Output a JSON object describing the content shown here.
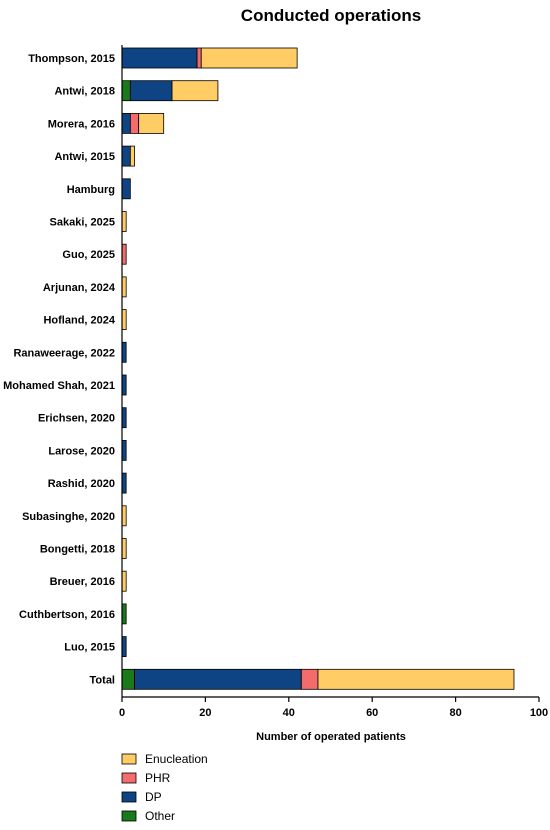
{
  "chart_data": {
    "type": "bar",
    "orientation": "horizontal",
    "stacked": true,
    "title": "Conducted operations",
    "xlabel": "Number of operated patients",
    "ylabel": "",
    "xlim": [
      0,
      100
    ],
    "xticks": [
      0,
      20,
      40,
      60,
      80,
      100
    ],
    "grid": false,
    "legend_position": "bottom-left",
    "categories": [
      "Thompson, 2015",
      "Antwi, 2018",
      "Morera, 2016",
      "Antwi, 2015",
      "Hamburg",
      "Sakaki, 2025",
      "Guo, 2025",
      "Arjunan, 2024",
      "Hofland, 2024",
      "Ranaweerage, 2022",
      "Mohamed Shah, 2021",
      "Erichsen, 2020",
      "Larose, 2020",
      "Rashid, 2020",
      "Subasinghe, 2020",
      "Bongetti, 2018",
      "Breuer, 2016",
      "Cuthbertson, 2016",
      "Luo, 2015",
      "Total"
    ],
    "stack_order": [
      "Other",
      "DP",
      "PHR",
      "Enucleation"
    ],
    "series": [
      {
        "name": "Enucleation",
        "color": "#FFCC66",
        "values": [
          23,
          11,
          6,
          1,
          0,
          1,
          0,
          1,
          1,
          0,
          0,
          0,
          0,
          0,
          1,
          1,
          1,
          0,
          0,
          47
        ]
      },
      {
        "name": "PHR",
        "color": "#F36B6B",
        "values": [
          1,
          0,
          2,
          0,
          0,
          0,
          1,
          0,
          0,
          0,
          0,
          0,
          0,
          0,
          0,
          0,
          0,
          0,
          0,
          4
        ]
      },
      {
        "name": "DP",
        "color": "#0E4483",
        "values": [
          18,
          10,
          2,
          2,
          2,
          0,
          0,
          0,
          0,
          1,
          1,
          1,
          1,
          1,
          0,
          0,
          0,
          0,
          1,
          40
        ]
      },
      {
        "name": "Other",
        "color": "#1A7A1A",
        "values": [
          0,
          2,
          0,
          0,
          0,
          0,
          0,
          0,
          0,
          0,
          0,
          0,
          0,
          0,
          0,
          0,
          0,
          1,
          0,
          3
        ]
      }
    ]
  }
}
